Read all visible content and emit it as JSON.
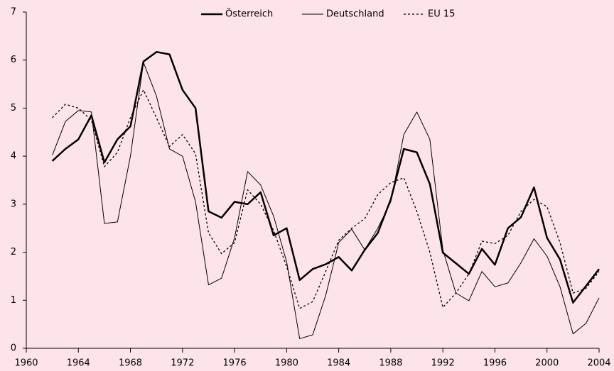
{
  "chart_data": {
    "type": "line",
    "x": [
      1962,
      1963,
      1964,
      1965,
      1966,
      1967,
      1968,
      1969,
      1970,
      1971,
      1972,
      1973,
      1974,
      1975,
      1976,
      1977,
      1978,
      1979,
      1980,
      1981,
      1982,
      1983,
      1984,
      1985,
      1986,
      1987,
      1988,
      1989,
      1990,
      1991,
      1992,
      1993,
      1994,
      1995,
      1996,
      1997,
      1998,
      1999,
      2000,
      2001,
      2002,
      2003,
      2004
    ],
    "series": [
      {
        "name": "Österreich",
        "color": "#000000",
        "line_width": 2.5,
        "dash": "solid",
        "values": [
          3.9,
          4.15,
          4.35,
          4.85,
          3.87,
          4.35,
          4.62,
          5.97,
          6.17,
          6.12,
          5.38,
          5.0,
          2.85,
          2.72,
          3.05,
          3.0,
          3.25,
          2.35,
          2.5,
          1.42,
          1.65,
          1.75,
          1.9,
          1.62,
          2.05,
          2.4,
          3.1,
          4.15,
          4.08,
          3.42,
          1.99,
          1.77,
          1.55,
          2.07,
          1.74,
          2.5,
          2.73,
          3.35,
          2.3,
          1.85,
          0.95,
          1.3,
          1.65
        ]
      },
      {
        "name": "Deutschland",
        "color": "#000000",
        "line_width": 1,
        "dash": "solid",
        "values": [
          4.02,
          4.72,
          4.95,
          4.92,
          2.6,
          2.63,
          4.0,
          5.95,
          5.25,
          4.15,
          4.0,
          3.05,
          1.32,
          1.46,
          2.3,
          3.68,
          3.4,
          2.75,
          1.8,
          0.2,
          0.28,
          1.1,
          2.2,
          2.48,
          2.05,
          2.5,
          3.05,
          4.45,
          4.92,
          4.35,
          2.05,
          1.15,
          0.99,
          1.6,
          1.28,
          1.36,
          1.78,
          2.28,
          1.92,
          1.28,
          0.3,
          0.52,
          1.05
        ]
      },
      {
        "name": "EU 15",
        "color": "#000000",
        "line_width": 1.3,
        "dash": "dotted",
        "values": [
          4.8,
          5.08,
          5.0,
          4.75,
          3.78,
          4.08,
          4.8,
          5.38,
          4.8,
          4.2,
          4.45,
          4.05,
          2.4,
          1.97,
          2.2,
          3.3,
          3.0,
          2.45,
          1.7,
          0.83,
          0.97,
          1.6,
          2.25,
          2.5,
          2.7,
          3.2,
          3.45,
          3.55,
          2.85,
          2.0,
          0.85,
          1.15,
          1.55,
          2.23,
          2.18,
          2.35,
          2.85,
          3.1,
          2.95,
          2.2,
          1.15,
          1.25,
          1.6
        ]
      }
    ],
    "xlim": [
      1960,
      2004
    ],
    "xticks": [
      1960,
      1964,
      1968,
      1972,
      1976,
      1980,
      1984,
      1988,
      1992,
      1996,
      2000,
      2004
    ],
    "ylim": [
      0,
      7
    ],
    "yticks": [
      0,
      1,
      2,
      3,
      4,
      5,
      6,
      7
    ],
    "legend": "top",
    "background": "#fde4ea"
  }
}
